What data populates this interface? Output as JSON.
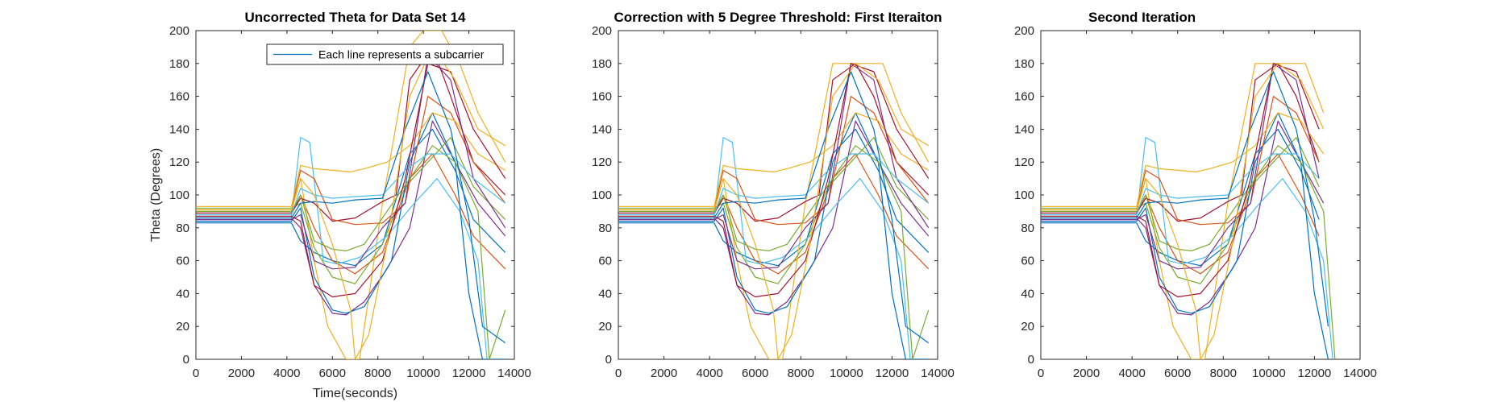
{
  "chart_data": [
    {
      "type": "line",
      "title": "Uncorrected Theta for Data Set 14",
      "xlabel": "Time(seconds)",
      "ylabel": "Theta (Degrees)",
      "xlim": [
        0,
        14000
      ],
      "ylim": [
        0,
        200
      ],
      "xticks": [
        "0",
        "2000",
        "4000",
        "6000",
        "8000",
        "10000",
        "12000",
        "14000"
      ],
      "yticks": [
        "0",
        "20",
        "40",
        "60",
        "80",
        "100",
        "120",
        "140",
        "160",
        "180",
        "200"
      ],
      "legend": {
        "label": "Each line represents a subcarrier",
        "position": "top-right"
      },
      "clip_max": 200,
      "end_time": 13600,
      "series": [
        {
          "color": "#0072BD",
          "x": [
            0,
            4200,
            4600,
            5200,
            6000,
            7000,
            8200,
            9400,
            10400,
            11400,
            12200,
            13600
          ],
          "y": [
            83,
            83,
            72,
            65,
            60,
            57,
            70,
            125,
            140,
            115,
            85,
            65
          ]
        },
        {
          "color": "#D95319",
          "x": [
            0,
            4200,
            4600,
            5200,
            6000,
            7000,
            8200,
            9400,
            10400,
            11400,
            12200,
            13600
          ],
          "y": [
            88,
            88,
            100,
            80,
            60,
            52,
            65,
            110,
            125,
            100,
            75,
            55
          ]
        },
        {
          "color": "#EDB120",
          "x": [
            0,
            4200,
            4600,
            5200,
            5800,
            6600,
            7200,
            8200,
            9400,
            10000,
            10800,
            11600,
            12400,
            13600
          ],
          "y": [
            90,
            90,
            110,
            60,
            20,
            0,
            0,
            95,
            190,
            240,
            220,
            180,
            150,
            120
          ]
        },
        {
          "color": "#7E2F8E",
          "x": [
            0,
            4200,
            4600,
            5200,
            6000,
            6600,
            7400,
            8400,
            9400,
            10400,
            11400,
            12400,
            13600
          ],
          "y": [
            86,
            86,
            80,
            45,
            28,
            27,
            35,
            55,
            80,
            145,
            120,
            95,
            75
          ]
        },
        {
          "color": "#77AC30",
          "x": [
            0,
            4200,
            4600,
            5200,
            6000,
            7000,
            8200,
            9200,
            10200,
            11200,
            12200,
            13600
          ],
          "y": [
            92,
            92,
            95,
            68,
            50,
            46,
            70,
            105,
            120,
            135,
            105,
            85
          ]
        },
        {
          "color": "#4DBEEE",
          "x": [
            0,
            4200,
            4600,
            5000,
            5400,
            5600,
            6200,
            7200,
            8400,
            9600,
            10600,
            11600,
            12400,
            12800,
            13600
          ],
          "y": [
            87,
            87,
            135,
            132,
            85,
            60,
            58,
            62,
            75,
            95,
            110,
            90,
            60,
            0,
            0
          ]
        },
        {
          "color": "#A2142F",
          "x": [
            0,
            4200,
            4600,
            5200,
            6000,
            7000,
            8200,
            8800,
            9400,
            10400,
            11200,
            12200,
            13600
          ],
          "y": [
            89,
            89,
            98,
            95,
            84,
            86,
            96,
            100,
            170,
            190,
            160,
            120,
            100
          ]
        },
        {
          "color": "#0072BD",
          "x": [
            0,
            4200,
            4600,
            5200,
            6000,
            6600,
            7400,
            8600,
            9400,
            10400,
            11400,
            12000,
            12600,
            13600
          ],
          "y": [
            84,
            84,
            92,
            50,
            30,
            28,
            32,
            60,
            120,
            150,
            120,
            40,
            0,
            0
          ]
        },
        {
          "color": "#D95319",
          "x": [
            0,
            4200,
            4600,
            5200,
            6000,
            7000,
            8200,
            9200,
            10200,
            11200,
            12200,
            13600
          ],
          "y": [
            91,
            91,
            115,
            110,
            85,
            82,
            83,
            95,
            160,
            150,
            120,
            95
          ]
        },
        {
          "color": "#EDB120",
          "x": [
            0,
            4200,
            4600,
            5200,
            6000,
            6800,
            7400,
            8400,
            9400,
            10400,
            11400,
            12400,
            13600
          ],
          "y": [
            93,
            93,
            118,
            116,
            115,
            114,
            116,
            120,
            130,
            150,
            145,
            125,
            115
          ]
        },
        {
          "color": "#7E2F8E",
          "x": [
            0,
            4200,
            4600,
            5200,
            6000,
            7000,
            8200,
            9200,
            10200,
            11200,
            12200,
            13600
          ],
          "y": [
            85,
            85,
            88,
            60,
            55,
            56,
            80,
            95,
            185,
            170,
            110,
            80
          ]
        },
        {
          "color": "#77AC30",
          "x": [
            0,
            4200,
            4600,
            5200,
            6000,
            6600,
            7400,
            8400,
            9400,
            10400,
            11400,
            12400,
            12900,
            13600
          ],
          "y": [
            90,
            90,
            100,
            72,
            67,
            66,
            70,
            90,
            110,
            130,
            120,
            90,
            0,
            30
          ]
        },
        {
          "color": "#4DBEEE",
          "x": [
            0,
            4200,
            4600,
            5200,
            6000,
            7000,
            8200,
            9200,
            10200,
            11200,
            12200,
            13600
          ],
          "y": [
            88,
            88,
            104,
            100,
            98,
            99,
            100,
            115,
            125,
            125,
            110,
            95
          ]
        },
        {
          "color": "#A2142F",
          "x": [
            0,
            4200,
            4600,
            5200,
            6000,
            7000,
            8200,
            9200,
            10200,
            11200,
            12200,
            13600
          ],
          "y": [
            87,
            87,
            84,
            45,
            38,
            40,
            60,
            110,
            180,
            175,
            140,
            110
          ]
        },
        {
          "color": "#0072BD",
          "x": [
            0,
            4200,
            4600,
            5200,
            6000,
            7000,
            8200,
            9200,
            10200,
            11200,
            12000,
            12600,
            13600
          ],
          "y": [
            86,
            86,
            95,
            96,
            95,
            97,
            98,
            140,
            175,
            140,
            85,
            20,
            10
          ]
        },
        {
          "color": "#EDB120",
          "x": [
            0,
            4200,
            4600,
            5200,
            6000,
            6800,
            7000,
            7600,
            8400,
            9400,
            10400,
            11400,
            12400,
            13600
          ],
          "y": [
            91,
            91,
            110,
            100,
            70,
            30,
            0,
            15,
            70,
            160,
            190,
            170,
            140,
            130
          ]
        }
      ]
    },
    {
      "type": "line",
      "title": "Correction with 5 Degree Threshold: First Iteraiton",
      "xlabel": "",
      "ylabel": "",
      "xlim": [
        0,
        14000
      ],
      "ylim": [
        0,
        200
      ],
      "xticks": [
        "0",
        "2000",
        "4000",
        "6000",
        "8000",
        "10000",
        "12000",
        "14000"
      ],
      "yticks": [
        "0",
        "20",
        "40",
        "60",
        "80",
        "100",
        "120",
        "140",
        "160",
        "180",
        "200"
      ],
      "clip_max": 180,
      "end_time": 13600
    },
    {
      "type": "line",
      "title": "Second Iteration",
      "xlabel": "",
      "ylabel": "",
      "xlim": [
        0,
        14000
      ],
      "ylim": [
        0,
        200
      ],
      "xticks": [
        "0",
        "2000",
        "4000",
        "6000",
        "8000",
        "10000",
        "12000",
        "14000"
      ],
      "yticks": [
        "0",
        "20",
        "40",
        "60",
        "80",
        "100",
        "120",
        "140",
        "160",
        "180",
        "200"
      ],
      "clip_max": 180,
      "end_time": 13200
    }
  ]
}
